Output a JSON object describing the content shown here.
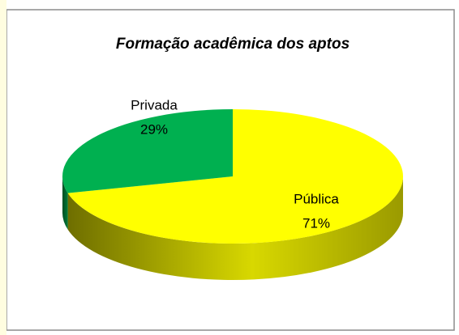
{
  "chart_data": {
    "type": "pie",
    "title": "Formação acadêmica dos aptos",
    "categories": [
      "Pública",
      "Privada"
    ],
    "values": [
      71,
      29
    ],
    "value_labels": [
      "71%",
      "29%"
    ],
    "colors": [
      "#ffff00",
      "#00b050"
    ]
  }
}
